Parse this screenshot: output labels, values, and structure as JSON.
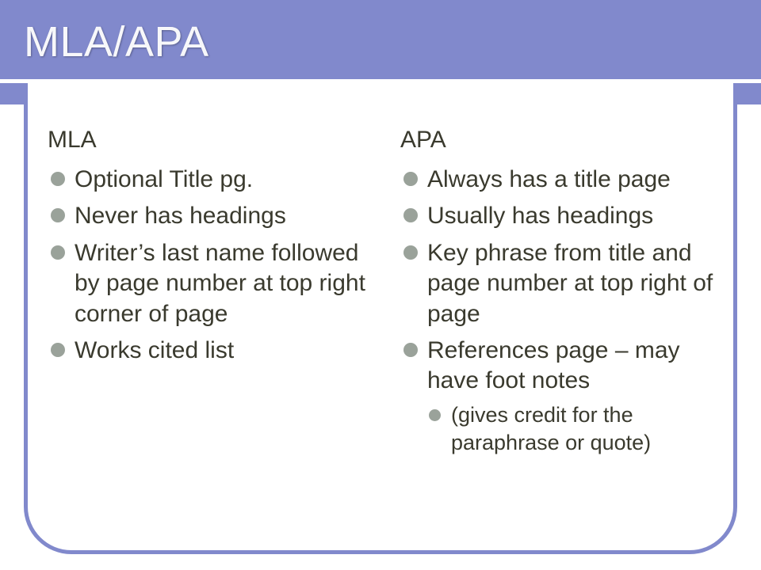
{
  "slide": {
    "title": "MLA/APA",
    "title_band_color": "#8189cc",
    "frame_border_color": "#8189cc",
    "bullet_color": "#9aa29a",
    "text_color": "#3a3a2e",
    "left": {
      "heading": "MLA",
      "items": [
        "Optional Title pg.",
        "Never has headings",
        "Writer’s last name followed by page number at top right corner of page",
        "Works cited list"
      ]
    },
    "right": {
      "heading": "APA",
      "items": [
        "Always has a title page",
        "Usually has headings",
        "Key phrase from title and page number at top right of page",
        "References page – may have foot notes"
      ],
      "subitems": [
        "(gives credit for the paraphrase or quote)"
      ]
    }
  }
}
